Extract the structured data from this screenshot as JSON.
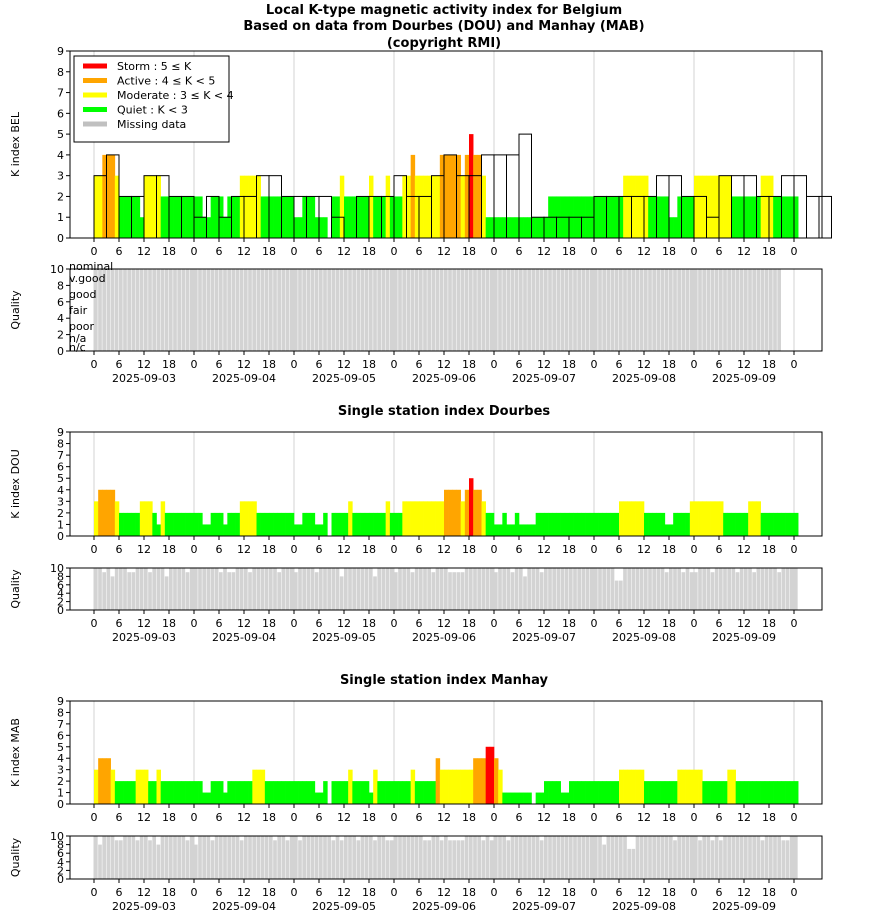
{
  "title_lines": [
    "Local K-type magnetic activity index for Belgium",
    "Based on data from Dourbes (DOU) and Manhay (MAB)",
    "(copyright RMI)"
  ],
  "legend": [
    {
      "label": "Storm : 5 ≤ K",
      "color": "#ff0000"
    },
    {
      "label": "Active : 4 ≤ K < 5",
      "color": "#ffa500"
    },
    {
      "label": "Moderate : 3 ≤ K < 4",
      "color": "#ffff00"
    },
    {
      "label": "Quiet : K < 3",
      "color": "#00ff00"
    },
    {
      "label": "Missing data",
      "color": "#c0c0c0"
    }
  ],
  "quality_levels": [
    "nominal",
    "v.good",
    "good",
    "fair",
    "poor",
    "n/a",
    "n/c"
  ],
  "hour_ticks": [
    "0",
    "6",
    "12",
    "18"
  ],
  "dates": [
    "2025-09-03",
    "2025-09-04",
    "2025-09-05",
    "2025-09-06",
    "2025-09-07",
    "2025-09-08",
    "2025-09-09"
  ],
  "colors": {
    "storm": "#ff0000",
    "active": "#ffa500",
    "moderate": "#ffff00",
    "quiet": "#00ff00",
    "quality": "#d3d3d3",
    "grid": "#d3d3d3"
  },
  "chart_data": [
    {
      "type": "bar",
      "ylabel": "K index BEL",
      "ylim": [
        0,
        9
      ],
      "legend_position": "top-left",
      "x_unit": "3-hour intervals from 2025-09-03 00:00 UT",
      "values": [
        3,
        4,
        2,
        2,
        3,
        3,
        2,
        2,
        1,
        2,
        1,
        2,
        2,
        3,
        3,
        2,
        2,
        2,
        2,
        1,
        0,
        2,
        2,
        2,
        3,
        2,
        2,
        3,
        4,
        3,
        3,
        4,
        4,
        4,
        5,
        1,
        1,
        1,
        1,
        1,
        2,
        2,
        2,
        2,
        2,
        3,
        3,
        2,
        2,
        1,
        3,
        3,
        3,
        2,
        2,
        3,
        3,
        2,
        2
      ],
      "values_hourly": {
        "start_hour": 0,
        "values": [
          3,
          3,
          4,
          4,
          4,
          3,
          2,
          2,
          2,
          2,
          2,
          1,
          3,
          3,
          3,
          3,
          2,
          2,
          2,
          2,
          2,
          2,
          2,
          2,
          2,
          2,
          1,
          1,
          2,
          2,
          2,
          1,
          2,
          2,
          2,
          3,
          3,
          3,
          3,
          3,
          2,
          2,
          2,
          2,
          2,
          2,
          2,
          2,
          1,
          1,
          2,
          2,
          2,
          1,
          1,
          1,
          0,
          2,
          2,
          3,
          2,
          2,
          2,
          2,
          2,
          2,
          3,
          2,
          2,
          2,
          3,
          2,
          2,
          2,
          3,
          3,
          4,
          3,
          3,
          3,
          3,
          3,
          3,
          4,
          4,
          4,
          4,
          4,
          3,
          4,
          5,
          4,
          4,
          3,
          1,
          1,
          1,
          1,
          1,
          1,
          1,
          1,
          1,
          1,
          1,
          1,
          1,
          1,
          1,
          2,
          2,
          2,
          2,
          2,
          2,
          2,
          2,
          2,
          2,
          2,
          2,
          2,
          2,
          2,
          2,
          2,
          2,
          3,
          3,
          3,
          3,
          3,
          3,
          2,
          2,
          2,
          2,
          2,
          1,
          1,
          2,
          2,
          2,
          2,
          3,
          3,
          3,
          3,
          3,
          3,
          3,
          3,
          3,
          2,
          2,
          2,
          2,
          2,
          2,
          2,
          3,
          3,
          3,
          2,
          2,
          2,
          2,
          2,
          2
        ]
      },
      "quality": {
        "level": "v.good",
        "value": 10,
        "hours": 165
      }
    },
    {
      "type": "bar",
      "title": "Single station index Dourbes",
      "ylabel": "K index DOU",
      "ylim": [
        0,
        9
      ],
      "values_hourly": {
        "start_hour": 0,
        "values": [
          3,
          4,
          4,
          4,
          4,
          3,
          2,
          2,
          2,
          2,
          2,
          3,
          3,
          3,
          2,
          1,
          3,
          2,
          2,
          2,
          2,
          2,
          2,
          2,
          2,
          2,
          1,
          1,
          2,
          2,
          2,
          1,
          2,
          2,
          2,
          3,
          3,
          3,
          3,
          2,
          2,
          2,
          2,
          2,
          2,
          2,
          2,
          2,
          1,
          1,
          2,
          2,
          2,
          1,
          1,
          2,
          0,
          2,
          2,
          2,
          2,
          3,
          2,
          2,
          2,
          2,
          2,
          2,
          2,
          2,
          3,
          2,
          2,
          2,
          3,
          3,
          3,
          3,
          3,
          3,
          3,
          3,
          3,
          3,
          4,
          4,
          4,
          4,
          3,
          4,
          5,
          4,
          4,
          3,
          2,
          2,
          1,
          1,
          2,
          1,
          1,
          2,
          1,
          1,
          1,
          1,
          2,
          2,
          2,
          2,
          2,
          2,
          2,
          2,
          2,
          2,
          2,
          2,
          2,
          2,
          2,
          2,
          2,
          2,
          2,
          2,
          3,
          3,
          3,
          3,
          3,
          3,
          2,
          2,
          2,
          2,
          2,
          1,
          1,
          2,
          2,
          2,
          2,
          3,
          3,
          3,
          3,
          3,
          3,
          3,
          3,
          2,
          2,
          2,
          2,
          2,
          2,
          3,
          3,
          3,
          2,
          2,
          2,
          2,
          2,
          2,
          2,
          2,
          2
        ]
      },
      "quality": {
        "values_hourly": [
          10,
          10,
          9,
          10,
          8,
          10,
          10,
          10,
          9,
          9,
          10,
          10,
          10,
          9,
          10,
          10,
          10,
          8,
          10,
          10,
          10,
          10,
          9,
          10,
          10,
          10,
          10,
          10,
          10,
          10,
          9,
          10,
          9,
          9,
          10,
          10,
          10,
          9,
          10,
          10,
          10,
          10,
          10,
          10,
          9,
          10,
          10,
          10,
          9,
          10,
          10,
          10,
          10,
          9,
          10,
          10,
          10,
          10,
          10,
          8,
          10,
          10,
          10,
          10,
          10,
          10,
          10,
          8,
          10,
          10,
          10,
          10,
          9,
          10,
          10,
          10,
          9,
          10,
          10,
          10,
          10,
          9,
          10,
          10,
          10,
          9,
          9,
          9,
          9,
          10,
          10,
          10,
          10,
          10,
          10,
          10,
          9,
          10,
          10,
          10,
          9,
          10,
          10,
          8,
          10,
          10,
          10,
          9,
          10,
          10,
          10,
          10,
          10,
          10,
          10,
          10,
          10,
          10,
          10,
          10,
          10,
          10,
          10,
          10,
          10,
          7,
          7,
          10,
          10,
          10,
          10,
          10,
          10,
          10,
          10,
          10,
          10,
          9,
          10,
          10,
          10,
          9,
          10,
          9,
          9,
          10,
          10,
          10,
          9,
          10,
          10,
          10,
          10,
          10,
          9,
          10,
          10,
          10,
          9,
          10,
          10,
          10,
          10,
          10,
          9,
          10,
          10,
          10,
          10
        ]
      }
    },
    {
      "type": "bar",
      "title": "Single station index Manhay",
      "ylabel": "K index MAB",
      "ylim": [
        0,
        9
      ],
      "values_hourly": {
        "start_hour": 0,
        "values": [
          3,
          4,
          4,
          4,
          3,
          2,
          2,
          2,
          2,
          2,
          3,
          3,
          3,
          2,
          2,
          3,
          2,
          2,
          2,
          2,
          2,
          2,
          2,
          2,
          2,
          2,
          1,
          1,
          2,
          2,
          2,
          1,
          2,
          2,
          2,
          2,
          2,
          2,
          3,
          3,
          3,
          2,
          2,
          2,
          2,
          2,
          2,
          2,
          2,
          2,
          2,
          2,
          2,
          1,
          1,
          2,
          0,
          2,
          2,
          2,
          2,
          3,
          2,
          2,
          2,
          2,
          1,
          3,
          2,
          2,
          2,
          2,
          2,
          2,
          2,
          2,
          3,
          2,
          2,
          2,
          2,
          2,
          4,
          3,
          3,
          3,
          3,
          3,
          3,
          3,
          3,
          4,
          4,
          4,
          5,
          5,
          4,
          3,
          1,
          1,
          1,
          1,
          1,
          1,
          1,
          0,
          1,
          1,
          2,
          2,
          2,
          2,
          1,
          1,
          2,
          2,
          2,
          2,
          2,
          2,
          2,
          2,
          2,
          2,
          2,
          2,
          3,
          3,
          3,
          3,
          3,
          3,
          2,
          2,
          2,
          2,
          2,
          2,
          2,
          2,
          3,
          3,
          3,
          3,
          3,
          3,
          2,
          2,
          2,
          2,
          2,
          2,
          3,
          3,
          2,
          2,
          2,
          2,
          2,
          2,
          2,
          2,
          2,
          2,
          2,
          2,
          2,
          2,
          2
        ]
      },
      "quality": {
        "values_hourly": [
          10,
          8,
          10,
          10,
          10,
          9,
          9,
          10,
          10,
          10,
          9,
          10,
          10,
          9,
          10,
          8,
          10,
          10,
          10,
          10,
          10,
          10,
          9,
          10,
          8,
          10,
          10,
          10,
          9,
          10,
          10,
          10,
          10,
          10,
          10,
          9,
          10,
          10,
          10,
          10,
          10,
          10,
          10,
          9,
          10,
          10,
          9,
          10,
          10,
          9,
          10,
          10,
          10,
          10,
          10,
          10,
          10,
          9,
          10,
          9,
          10,
          10,
          10,
          9,
          10,
          10,
          10,
          9,
          10,
          10,
          9,
          9,
          10,
          10,
          10,
          10,
          10,
          10,
          10,
          9,
          9,
          10,
          10,
          9,
          10,
          9,
          9,
          9,
          9,
          10,
          10,
          10,
          10,
          9,
          10,
          9,
          10,
          10,
          10,
          9,
          10,
          10,
          10,
          10,
          10,
          10,
          10,
          9,
          10,
          10,
          10,
          10,
          10,
          10,
          10,
          10,
          10,
          10,
          10,
          10,
          10,
          10,
          8,
          10,
          10,
          10,
          10,
          10,
          7,
          7,
          10,
          10,
          10,
          10,
          10,
          10,
          10,
          10,
          10,
          9,
          10,
          10,
          10,
          10,
          10,
          9,
          10,
          10,
          9,
          10,
          9,
          10,
          10,
          10,
          10,
          10,
          10,
          10,
          10,
          10,
          9,
          10,
          10,
          10,
          10,
          9,
          9,
          10,
          10
        ]
      }
    }
  ]
}
